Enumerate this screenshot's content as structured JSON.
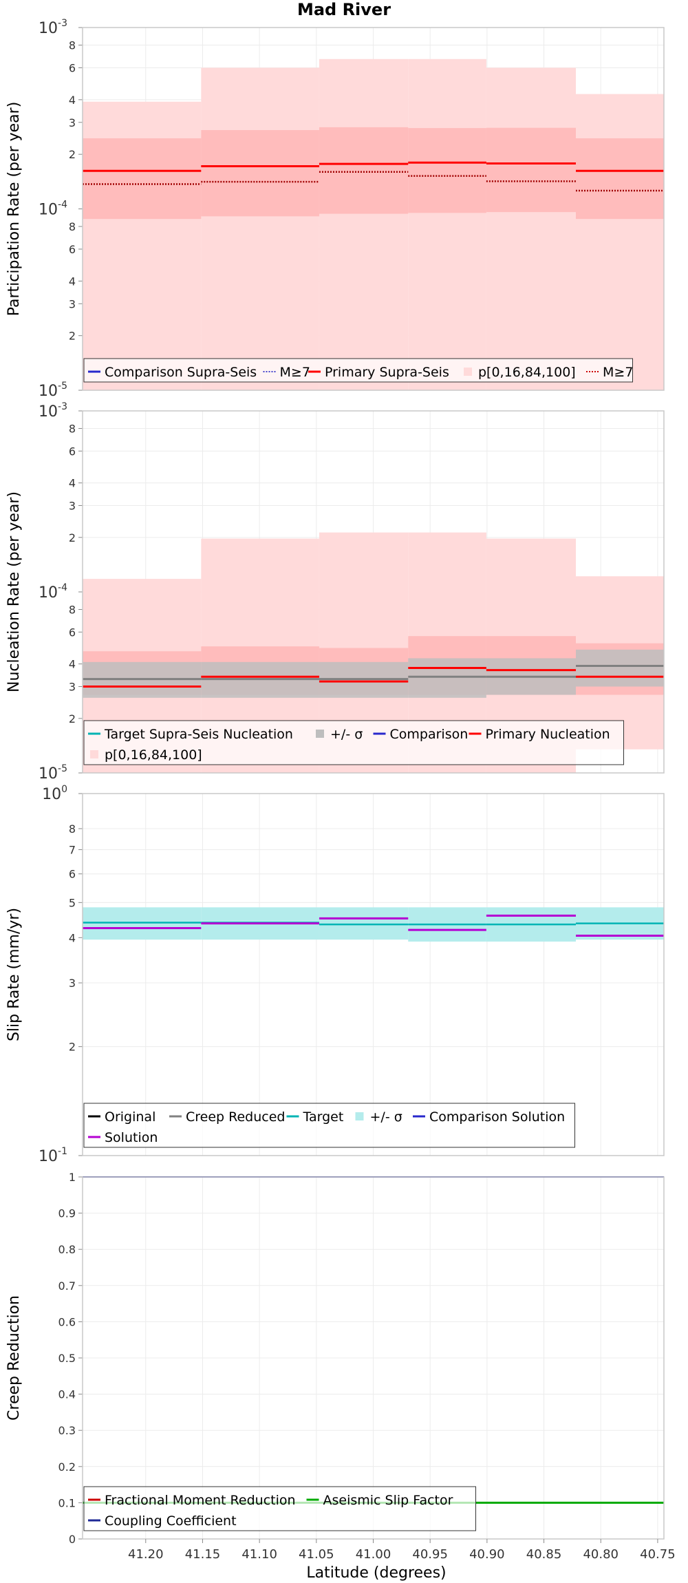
{
  "title": "Mad River",
  "x_axis": {
    "label": "Latitude (degrees)",
    "reversed": true,
    "range": [
      41.2555,
      40.7445
    ],
    "ticks": [
      41.2,
      41.15,
      41.1,
      41.05,
      41.0,
      40.95,
      40.9,
      40.85,
      40.8,
      40.75
    ],
    "tick_labels": [
      "41.20",
      "41.15",
      "41.10",
      "41.05",
      "41.00",
      "40.95",
      "40.90",
      "40.85",
      "40.80",
      "40.75"
    ],
    "subsection_edges": [
      41.2555,
      41.1513,
      41.0475,
      40.9693,
      40.9006,
      40.8219,
      40.7445
    ]
  },
  "colors": {
    "primary_red": "#ff0000",
    "dark_red": "#a00000",
    "band_light": "#ffdada",
    "band_mid": "#ffbcbc",
    "target_cyan": "#00b4b4",
    "cyan_band": "#b4ecec",
    "solution_magenta": "#b400d2",
    "coupling_blue": "#1e2896",
    "aseismic_green": "#00aa00",
    "gray": "#808080",
    "gray_band": "#bebebe"
  },
  "chart_data": [
    {
      "type": "line",
      "step": true,
      "ylabel": "Participation Rate (per year)",
      "ylog": true,
      "ylim": [
        1e-05,
        0.001
      ],
      "y_tick_labels": [
        "10-5",
        "2",
        "3",
        "4",
        "6",
        "8",
        "10-4",
        "2",
        "3",
        "4",
        "6",
        "8",
        "10-3"
      ],
      "bands": [
        {
          "name": "p[0,16,84,100]",
          "low": [
            1e-05,
            1e-05,
            1e-05,
            1e-05,
            1e-05,
            1e-05
          ],
          "high": [
            0.00039,
            0.0006,
            0.00067,
            0.00067,
            0.0006,
            0.00043
          ]
        },
        {
          "name": "p[0,16,84,100]",
          "low": [
            8.8e-05,
            9.1e-05,
            9.4e-05,
            9.5e-05,
            9.6e-05,
            8.8e-05
          ],
          "high": [
            0.000245,
            0.000272,
            0.000282,
            0.000279,
            0.00028,
            0.000245
          ]
        }
      ],
      "series": [
        {
          "name": "Primary Supra-Seis",
          "values": [
            0.000162,
            0.000172,
            0.000177,
            0.00018,
            0.000178,
            0.000162
          ]
        },
        {
          "name": "M≥7",
          "values": [
            0.000137,
            0.000141,
            0.00016,
            0.000152,
            0.000142,
            0.000126
          ]
        }
      ],
      "legend": {
        "placement": "bottom-left",
        "items": [
          {
            "label": "Comparison Supra-Seis",
            "swatch": "line",
            "color": "#2828cc"
          },
          {
            "label": "M≥7",
            "swatch": "dotted",
            "color": "#4444cc"
          },
          {
            "label": "Primary Supra-Seis",
            "swatch": "line",
            "color": "#ff0000"
          },
          {
            "label": "p[0,16,84,100]",
            "swatch": "box",
            "color": "#ffdada"
          },
          {
            "label": "M≥7",
            "swatch": "dotted",
            "color": "#cc0000"
          }
        ]
      }
    },
    {
      "type": "line",
      "step": true,
      "ylabel": "Nucleation Rate (per year)",
      "ylog": true,
      "ylim": [
        1e-05,
        0.001
      ],
      "y_tick_labels": [
        "10-5",
        "2",
        "3",
        "4",
        "6",
        "8",
        "10-4",
        "2",
        "3",
        "4",
        "6",
        "8",
        "10-3"
      ],
      "bands": [
        {
          "name": "p[0,16,84,100]",
          "low": [
            1e-05,
            1e-05,
            1e-05,
            1e-05,
            1e-05,
            1.35e-05
          ],
          "high": [
            0.000118,
            0.000197,
            0.000213,
            0.000213,
            0.000197,
            0.000122
          ]
        },
        {
          "name": "p[0,16,84,100]",
          "low": [
            2.7e-05,
            2.7e-05,
            2.7e-05,
            2.7e-05,
            2.7e-05,
            2.7e-05
          ],
          "high": [
            4.7e-05,
            5e-05,
            4.9e-05,
            5.7e-05,
            5.7e-05,
            5.2e-05
          ]
        },
        {
          "name": "+/- σ",
          "low": [
            2.6e-05,
            2.6e-05,
            2.6e-05,
            2.6e-05,
            2.7e-05,
            3e-05
          ],
          "high": [
            4.1e-05,
            4.1e-05,
            4.1e-05,
            4.3e-05,
            4.3e-05,
            4.8e-05
          ]
        }
      ],
      "series": [
        {
          "name": "Target Supra-Seis Nucleation",
          "values": [
            3.3e-05,
            3.3e-05,
            3.3e-05,
            3.4e-05,
            3.4e-05,
            3.9e-05
          ]
        },
        {
          "name": "Primary Nucleation",
          "values": [
            3e-05,
            3.4e-05,
            3.2e-05,
            3.8e-05,
            3.7e-05,
            3.4e-05
          ]
        }
      ],
      "legend": {
        "placement": "bottom-left",
        "items": [
          {
            "label": "Target Supra-Seis Nucleation",
            "swatch": "line",
            "color": "#00b4b4"
          },
          {
            "label": "+/- σ",
            "swatch": "box",
            "color": "#bebebe"
          },
          {
            "label": "Comparison",
            "swatch": "line",
            "color": "#2828cc"
          },
          {
            "label": "Primary Nucleation",
            "swatch": "line",
            "color": "#ff0000"
          },
          {
            "label": "p[0,16,84,100]",
            "swatch": "box",
            "color": "#ffdada"
          }
        ]
      }
    },
    {
      "type": "line",
      "step": true,
      "ylabel": "Slip Rate (mm/yr)",
      "ylog": true,
      "ylim": [
        1,
        10
      ],
      "y_tick_labels": [
        "10-1",
        "2",
        "3",
        "4",
        "5",
        "6",
        "7",
        "8",
        "100"
      ],
      "bands": [
        {
          "name": "+/- σ",
          "low": [
            3.95,
            3.95,
            3.95,
            3.9,
            3.9,
            3.95
          ],
          "high": [
            4.85,
            4.85,
            4.85,
            4.85,
            4.85,
            4.85
          ]
        }
      ],
      "series": [
        {
          "name": "Target",
          "values": [
            4.4,
            4.4,
            4.35,
            4.35,
            4.35,
            4.38
          ]
        },
        {
          "name": "Solution",
          "values": [
            4.25,
            4.38,
            4.52,
            4.2,
            4.6,
            4.05
          ]
        }
      ],
      "legend": {
        "placement": "bottom-left",
        "items": [
          {
            "label": "Original",
            "swatch": "line",
            "color": "#000000"
          },
          {
            "label": "Creep Reduced",
            "swatch": "line",
            "color": "#808080"
          },
          {
            "label": "Target",
            "swatch": "line",
            "color": "#00b4b4"
          },
          {
            "label": "+/- σ",
            "swatch": "box",
            "color": "#b4ecec"
          },
          {
            "label": "Comparison Solution",
            "swatch": "line",
            "color": "#2828cc"
          },
          {
            "label": "Solution",
            "swatch": "line",
            "color": "#b400d2"
          }
        ]
      }
    },
    {
      "type": "line",
      "ylabel": "Creep Reduction",
      "ylog": false,
      "ylim": [
        0,
        1
      ],
      "y_ticks": [
        0,
        0.1,
        0.2,
        0.3,
        0.4,
        0.5,
        0.6,
        0.7,
        0.8,
        0.9,
        1
      ],
      "y_tick_labels": [
        "0",
        "0.1",
        "0.2",
        "0.3",
        "0.4",
        "0.5",
        "0.6",
        "0.7",
        "0.8",
        "0.9",
        "1"
      ],
      "series": [
        {
          "name": "Aseismic Slip Factor",
          "value": 0.1
        },
        {
          "name": "Coupling Coefficient",
          "value": 1.0
        }
      ],
      "legend": {
        "placement": "bottom-left",
        "items": [
          {
            "label": "Fractional Moment Reduction",
            "swatch": "line",
            "color": "#cc0000"
          },
          {
            "label": "Aseismic Slip Factor",
            "swatch": "line",
            "color": "#00aa00"
          },
          {
            "label": "Coupling Coefficient",
            "swatch": "line",
            "color": "#1e2896"
          }
        ]
      }
    }
  ]
}
